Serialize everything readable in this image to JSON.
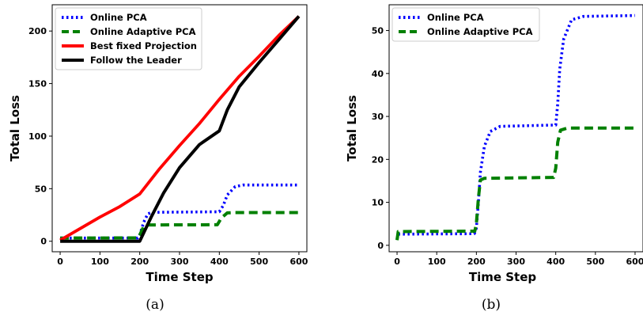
{
  "chart_data": [
    {
      "type": "line",
      "caption": "(a)",
      "xlabel": "Time Step",
      "ylabel": "Total Loss",
      "xlim": [
        -20,
        620
      ],
      "ylim": [
        -10,
        225
      ],
      "xticks": [
        0,
        100,
        200,
        300,
        400,
        500,
        600
      ],
      "yticks": [
        0,
        50,
        100,
        150,
        200
      ],
      "legend_position": "top-left",
      "series": [
        {
          "name": "Online PCA",
          "color": "#0000ff",
          "style": "dotted",
          "points": [
            [
              0,
              3
            ],
            [
              195,
              3
            ],
            [
              200,
              6
            ],
            [
              210,
              18
            ],
            [
              220,
              26
            ],
            [
              230,
              27.5
            ],
            [
              400,
              28
            ],
            [
              410,
              34
            ],
            [
              420,
              44
            ],
            [
              440,
              52
            ],
            [
              460,
              53.5
            ],
            [
              600,
              53.5
            ]
          ]
        },
        {
          "name": "Online Adaptive PCA",
          "color": "#008000",
          "style": "dashed",
          "points": [
            [
              0,
              3
            ],
            [
              195,
              3.2
            ],
            [
              200,
              6
            ],
            [
              210,
              14
            ],
            [
              220,
              15.5
            ],
            [
              395,
              15.7
            ],
            [
              405,
              22
            ],
            [
              420,
              27
            ],
            [
              440,
              27.3
            ],
            [
              600,
              27.3
            ]
          ]
        },
        {
          "name": "Best fixed Projection",
          "color": "#ff0000",
          "style": "solid",
          "points": [
            [
              0,
              1
            ],
            [
              50,
              12
            ],
            [
              100,
              23
            ],
            [
              150,
              33
            ],
            [
              200,
              45
            ],
            [
              250,
              69
            ],
            [
              300,
              91
            ],
            [
              350,
              112
            ],
            [
              400,
              135
            ],
            [
              450,
              157
            ],
            [
              500,
              176
            ],
            [
              550,
              196
            ],
            [
              600,
              214
            ]
          ]
        },
        {
          "name": "Follow the Leader",
          "color": "#000000",
          "style": "solid",
          "points": [
            [
              0,
              0
            ],
            [
              200,
              0
            ],
            [
              230,
              24
            ],
            [
              260,
              46
            ],
            [
              300,
              70
            ],
            [
              350,
              92
            ],
            [
              400,
              105
            ],
            [
              420,
              125
            ],
            [
              450,
              147
            ],
            [
              500,
              170
            ],
            [
              550,
              192
            ],
            [
              600,
              214
            ]
          ]
        }
      ]
    },
    {
      "type": "line",
      "caption": "(b)",
      "xlabel": "Time Step",
      "ylabel": "Total Loss",
      "xlim": [
        -20,
        620
      ],
      "ylim": [
        -1.5,
        56
      ],
      "xticks": [
        0,
        100,
        200,
        300,
        400,
        500,
        600
      ],
      "xtick_labels": [
        "0",
        "100",
        "200",
        "300",
        "400",
        "500",
        "600"
      ],
      "yticks": [
        0,
        10,
        20,
        30,
        40,
        50
      ],
      "legend_position": "top-left",
      "series": [
        {
          "name": "Online PCA",
          "color": "#0000ff",
          "style": "dotted",
          "points": [
            [
              0,
              1.5
            ],
            [
              3,
              2.6
            ],
            [
              195,
              2.7
            ],
            [
              200,
              4
            ],
            [
              205,
              10
            ],
            [
              210,
              17
            ],
            [
              220,
              23
            ],
            [
              235,
              26.5
            ],
            [
              260,
              27.7
            ],
            [
              400,
              28
            ],
            [
              405,
              33
            ],
            [
              410,
              41
            ],
            [
              420,
              48
            ],
            [
              440,
              52.5
            ],
            [
              470,
              53.3
            ],
            [
              600,
              53.5
            ]
          ]
        },
        {
          "name": "Online Adaptive PCA",
          "color": "#008000",
          "style": "dashed",
          "points": [
            [
              0,
              1.2
            ],
            [
              3,
              3.2
            ],
            [
              196,
              3.3
            ],
            [
              200,
              5
            ],
            [
              205,
              11
            ],
            [
              210,
              15.2
            ],
            [
              220,
              15.6
            ],
            [
              395,
              15.8
            ],
            [
              400,
              18
            ],
            [
              405,
              24
            ],
            [
              412,
              26.8
            ],
            [
              430,
              27.3
            ],
            [
              600,
              27.3
            ]
          ]
        }
      ]
    }
  ]
}
